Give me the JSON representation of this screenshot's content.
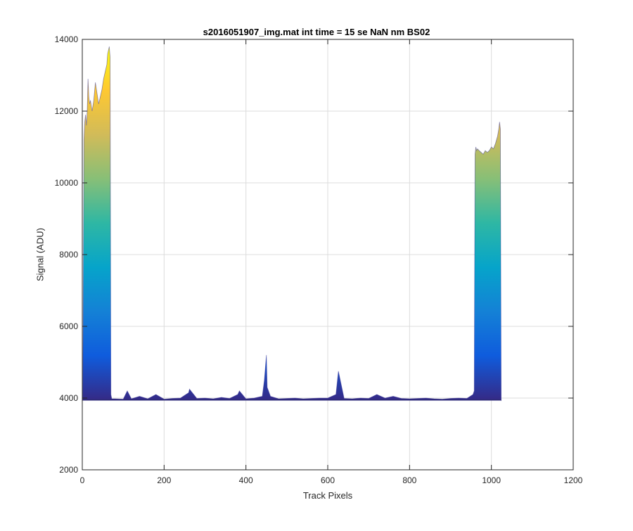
{
  "chart_data": {
    "type": "area",
    "title": "s2016051907_img.mat int time = 15 se  NaN nm BS02",
    "xlabel": "Track Pixels",
    "ylabel": "Signal (ADU)",
    "xlim": [
      0,
      1200
    ],
    "ylim": [
      2000,
      14000
    ],
    "xticks": [
      0,
      200,
      400,
      600,
      800,
      1000,
      1200
    ],
    "yticks": [
      2000,
      4000,
      6000,
      8000,
      10000,
      12000,
      14000
    ],
    "grid": true,
    "colormap": [
      "#352a87",
      "#0f5cdd",
      "#1481d6",
      "#06a4ca",
      "#2eb7a4",
      "#87bf77",
      "#d1bb59",
      "#fec832",
      "#f9fb0e"
    ],
    "series": [
      {
        "x": [
          1,
          2,
          4,
          6,
          8,
          10,
          12,
          14,
          16,
          18,
          20,
          24,
          28,
          32,
          36,
          40,
          44,
          48,
          52,
          56,
          60,
          62,
          64,
          66,
          68,
          70,
          72,
          80,
          100,
          110,
          120,
          140,
          160,
          180,
          200,
          220,
          240,
          260,
          262,
          280,
          300,
          320,
          340,
          360,
          380,
          384,
          400,
          420,
          440,
          445,
          450,
          452,
          460,
          480,
          500,
          520,
          540,
          560,
          580,
          600,
          620,
          626,
          640,
          660,
          680,
          700,
          720,
          740,
          760,
          780,
          800,
          820,
          840,
          860,
          880,
          900,
          920,
          940,
          955,
          958,
          960,
          962,
          964,
          966,
          970,
          975,
          980,
          985,
          990,
          995,
          1000,
          1005,
          1010,
          1015,
          1018,
          1020,
          1022,
          1024
        ],
        "y": [
          4000,
          6000,
          11200,
          11700,
          11900,
          11600,
          12000,
          12900,
          12400,
          12200,
          12300,
          12000,
          12300,
          12800,
          12500,
          12200,
          12400,
          12600,
          12900,
          13100,
          13300,
          13600,
          13700,
          13800,
          13500,
          4100,
          3980,
          3980,
          3970,
          4200,
          3980,
          4050,
          3980,
          4100,
          3970,
          3990,
          4000,
          4150,
          4250,
          3990,
          4000,
          3980,
          4020,
          3990,
          4100,
          4200,
          3980,
          4000,
          4050,
          4500,
          5200,
          4300,
          4050,
          3980,
          3990,
          4000,
          3980,
          3990,
          4000,
          4000,
          4100,
          4750,
          3990,
          3980,
          4000,
          3990,
          4100,
          4000,
          4050,
          3990,
          3980,
          3990,
          4000,
          3980,
          3970,
          3990,
          4000,
          3990,
          4100,
          4200,
          10800,
          11000,
          10900,
          10950,
          10900,
          10850,
          10800,
          10900,
          10850,
          10900,
          11000,
          10950,
          11100,
          11300,
          11500,
          11700,
          11500,
          3920
        ],
        "baseline": 3950
      }
    ]
  }
}
